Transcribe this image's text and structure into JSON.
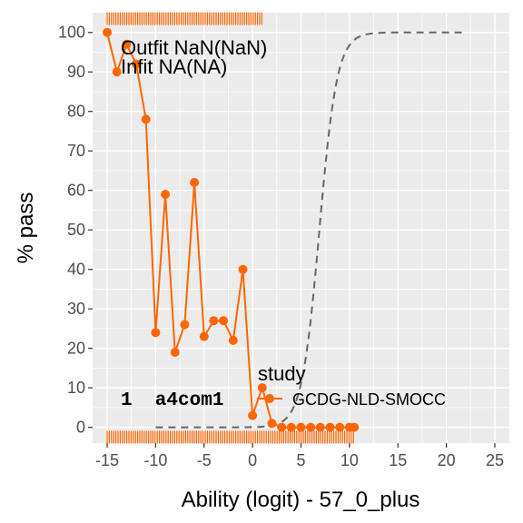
{
  "chart_data": {
    "type": "line",
    "xlabel": "Ability (logit) - 57_0_plus",
    "ylabel": "% pass",
    "xlim": [
      -16.5,
      26.5
    ],
    "ylim": [
      -4,
      105
    ],
    "x_ticks": [
      -15,
      -10,
      -5,
      0,
      5,
      10,
      15,
      20,
      25
    ],
    "y_ticks": [
      0,
      10,
      20,
      30,
      40,
      50,
      60,
      70,
      80,
      90,
      100
    ],
    "x_tick_labels": [
      "-15",
      "-10",
      "-5",
      "0",
      "5",
      "10",
      "15",
      "20",
      "25"
    ],
    "y_tick_labels": [
      "0",
      "10",
      "20",
      "30",
      "40",
      "50",
      "60",
      "70",
      "80",
      "90",
      "100"
    ],
    "grid": true,
    "annotations": {
      "outfit": "Outfit NaN(NaN)",
      "infit": "Infit  NA(NA)",
      "item_label": "1  a4com1"
    },
    "legend": {
      "title": "study",
      "position": "right",
      "entries": [
        "GCDG-NLD-SMOCC"
      ]
    },
    "series": [
      {
        "name": "GCDG-NLD-SMOCC",
        "color": "#FF6600",
        "x": [
          -15,
          -14,
          -13,
          -12,
          -11,
          -10,
          -9,
          -8,
          -7,
          -6,
          -5,
          -4,
          -3,
          -2,
          -1,
          0,
          1,
          2,
          3,
          4,
          5,
          6,
          7,
          8,
          9,
          10,
          10.5
        ],
        "values": [
          100,
          90,
          97,
          92,
          78,
          24,
          59,
          19,
          26,
          62,
          23,
          27,
          27,
          22,
          40,
          3,
          10,
          1,
          0,
          0,
          0,
          0,
          0,
          0,
          0,
          0,
          0
        ]
      }
    ],
    "model_curve": {
      "color": "#666666",
      "style": "dashed",
      "x_start": -10,
      "x_end": 22,
      "midpoint": 6.9,
      "slope": 1.1,
      "upper": 100
    },
    "rug_top": {
      "color": "#FF6600",
      "x_from": -15,
      "x_to": 1,
      "y": 103.5
    },
    "rug_bottom": {
      "color": "#FF6600",
      "x_from": -15,
      "x_to": 10.5,
      "y": -2.5
    }
  }
}
